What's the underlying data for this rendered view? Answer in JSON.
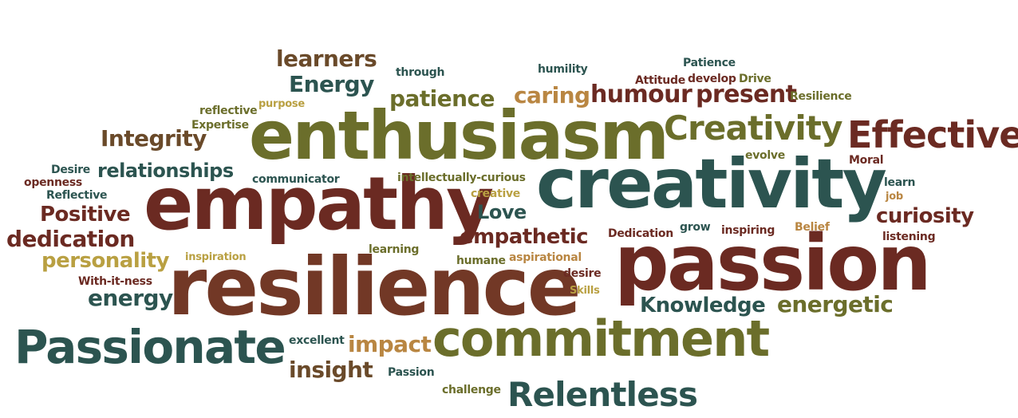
{
  "colors": {
    "teal": "#2c5450",
    "maroon": "#6b2a22",
    "brown": "#723826",
    "olive": "#6b6e2b",
    "mustard": "#b9a042",
    "tan": "#b98642",
    "brown_dark": "#6a4a2a"
  },
  "words": [
    {
      "text": "enthusiasm",
      "color": "olive"
    },
    {
      "text": "empathy",
      "color": "maroon"
    },
    {
      "text": "creativity",
      "color": "teal"
    },
    {
      "text": "resilience",
      "color": "brown"
    },
    {
      "text": "passion",
      "color": "maroon"
    },
    {
      "text": "commitment",
      "color": "olive"
    },
    {
      "text": "Passionate",
      "color": "teal"
    },
    {
      "text": "Effective",
      "color": "maroon"
    },
    {
      "text": "Creativity",
      "color": "olive"
    },
    {
      "text": "Relentless",
      "color": "teal"
    },
    {
      "text": "learners",
      "color": "brown_dark"
    },
    {
      "text": "Energy",
      "color": "teal"
    },
    {
      "text": "patience",
      "color": "olive"
    },
    {
      "text": "caring",
      "color": "tan"
    },
    {
      "text": "humour",
      "color": "maroon"
    },
    {
      "text": "present",
      "color": "maroon"
    },
    {
      "text": "Integrity",
      "color": "brown_dark"
    },
    {
      "text": "relationships",
      "color": "teal"
    },
    {
      "text": "Positive",
      "color": "maroon"
    },
    {
      "text": "dedication",
      "color": "maroon"
    },
    {
      "text": "personality",
      "color": "mustard"
    },
    {
      "text": "energy",
      "color": "teal"
    },
    {
      "text": "Love",
      "color": "teal"
    },
    {
      "text": "empathetic",
      "color": "maroon"
    },
    {
      "text": "curiosity",
      "color": "maroon"
    },
    {
      "text": "Knowledge",
      "color": "teal"
    },
    {
      "text": "energetic",
      "color": "olive"
    },
    {
      "text": "impact",
      "color": "tan"
    },
    {
      "text": "insight",
      "color": "brown_dark"
    },
    {
      "text": "through",
      "color": "teal"
    },
    {
      "text": "humility",
      "color": "teal"
    },
    {
      "text": "Patience",
      "color": "teal"
    },
    {
      "text": "Attitude",
      "color": "maroon"
    },
    {
      "text": "develop",
      "color": "maroon"
    },
    {
      "text": "Drive",
      "color": "olive"
    },
    {
      "text": "Resilience",
      "color": "olive"
    },
    {
      "text": "reflective",
      "color": "olive"
    },
    {
      "text": "purpose",
      "color": "mustard"
    },
    {
      "text": "Expertise",
      "color": "olive"
    },
    {
      "text": "Desire",
      "color": "teal"
    },
    {
      "text": "openness",
      "color": "maroon"
    },
    {
      "text": "Reflective",
      "color": "teal"
    },
    {
      "text": "communicator",
      "color": "teal"
    },
    {
      "text": "intellectually-curious",
      "color": "olive"
    },
    {
      "text": "creative",
      "color": "mustard"
    },
    {
      "text": "evolve",
      "color": "olive"
    },
    {
      "text": "Moral",
      "color": "maroon"
    },
    {
      "text": "learn",
      "color": "teal"
    },
    {
      "text": "job",
      "color": "tan"
    },
    {
      "text": "Dedication",
      "color": "maroon"
    },
    {
      "text": "grow",
      "color": "teal"
    },
    {
      "text": "inspiring",
      "color": "maroon"
    },
    {
      "text": "Belief",
      "color": "tan"
    },
    {
      "text": "listening",
      "color": "maroon"
    },
    {
      "text": "inspiration",
      "color": "mustard"
    },
    {
      "text": "learning",
      "color": "olive"
    },
    {
      "text": "humane",
      "color": "olive"
    },
    {
      "text": "aspirational",
      "color": "tan"
    },
    {
      "text": "desire",
      "color": "maroon"
    },
    {
      "text": "With-it-ness",
      "color": "maroon"
    },
    {
      "text": "Skills",
      "color": "mustard"
    },
    {
      "text": "excellent",
      "color": "teal"
    },
    {
      "text": "Passion",
      "color": "teal"
    },
    {
      "text": "challenge",
      "color": "olive"
    }
  ]
}
